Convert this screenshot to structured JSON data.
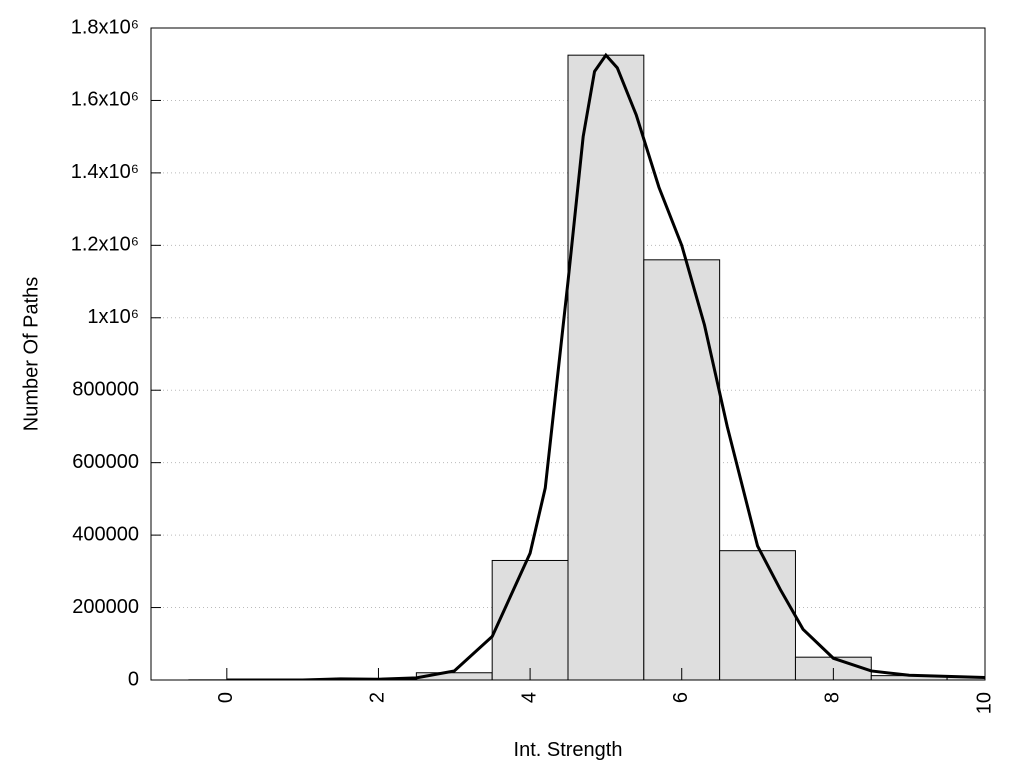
{
  "chart_data": {
    "type": "histogram",
    "xlabel": "Int. Strength",
    "ylabel": "Number Of Paths",
    "bins": [
      -0.5,
      0.5,
      1.5,
      2.5,
      3.5,
      4.5,
      5.5,
      6.5,
      7.5,
      8.5,
      9.5,
      10.5
    ],
    "counts": [
      500,
      500,
      2000,
      20000,
      330000,
      1725000,
      1160000,
      357000,
      63000,
      12000,
      8000
    ],
    "color": "#dedede",
    "curve": {
      "x": [
        0,
        1,
        1.5,
        2,
        2.5,
        3,
        3.5,
        4,
        4.2,
        4.5,
        4.7,
        4.85,
        5,
        5.15,
        5.4,
        5.7,
        6,
        6.3,
        6.6,
        7,
        7.3,
        7.6,
        8,
        8.5,
        9,
        9.5,
        10
      ],
      "y": [
        0,
        0,
        3000,
        2000,
        6000,
        25000,
        120000,
        350000,
        530000,
        1100000,
        1500000,
        1680000,
        1725000,
        1690000,
        1560000,
        1360000,
        1200000,
        980000,
        700000,
        370000,
        250000,
        140000,
        60000,
        25000,
        13000,
        10000,
        7000
      ],
      "color": "#000000"
    },
    "xlim": [
      -1,
      10
    ],
    "ylim": [
      0,
      1800000
    ],
    "xticks": [
      0,
      2,
      4,
      6,
      8,
      10
    ],
    "yticks": [
      0,
      200000,
      400000,
      600000,
      800000,
      {
        "value": 1000000,
        "label": "1x10⁶"
      },
      {
        "value": 1200000,
        "label": "1.2x10⁶"
      },
      {
        "value": 1400000,
        "label": "1.4x10⁶"
      },
      {
        "value": 1600000,
        "label": "1.6x10⁶"
      },
      {
        "value": 1800000,
        "label": "1.8x10⁶"
      }
    ],
    "grid": true
  }
}
